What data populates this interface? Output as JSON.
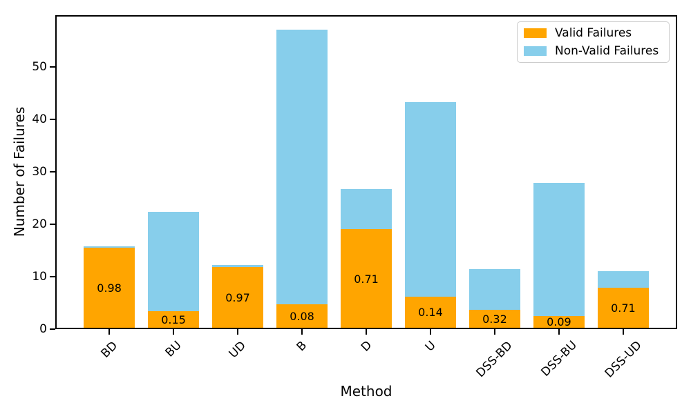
{
  "chart_data": {
    "type": "bar",
    "stacked": true,
    "xlabel": "Method",
    "ylabel": "Number of Failures",
    "categories": [
      "BD",
      "BU",
      "UD",
      "B",
      "D",
      "U",
      "DSS-BD",
      "DSS-BU",
      "DSS-UD"
    ],
    "series": [
      {
        "name": "Valid Failures",
        "color": "#FFA500",
        "values": [
          15.5,
          3.4,
          11.8,
          4.7,
          19.0,
          6.2,
          3.7,
          2.5,
          7.9
        ]
      },
      {
        "name": "Non-Valid Failures",
        "color": "#87CEEB",
        "values": [
          0.3,
          19.0,
          0.4,
          52.3,
          7.7,
          37.0,
          7.8,
          25.4,
          3.2
        ]
      }
    ],
    "totals": [
      15.8,
      22.4,
      12.2,
      57.0,
      26.7,
      43.2,
      11.5,
      27.9,
      11.1
    ],
    "bar_labels": [
      "0.98",
      "0.15",
      "0.97",
      "0.08",
      "0.71",
      "0.14",
      "0.32",
      "0.09",
      "0.71"
    ],
    "yticks": [
      0,
      10,
      20,
      30,
      40,
      50
    ],
    "ylim": [
      0,
      59.8
    ],
    "bar_width_fraction": 0.8,
    "x_tick_rotation_deg": 45,
    "grid": false,
    "legend_position": "upper-right"
  }
}
